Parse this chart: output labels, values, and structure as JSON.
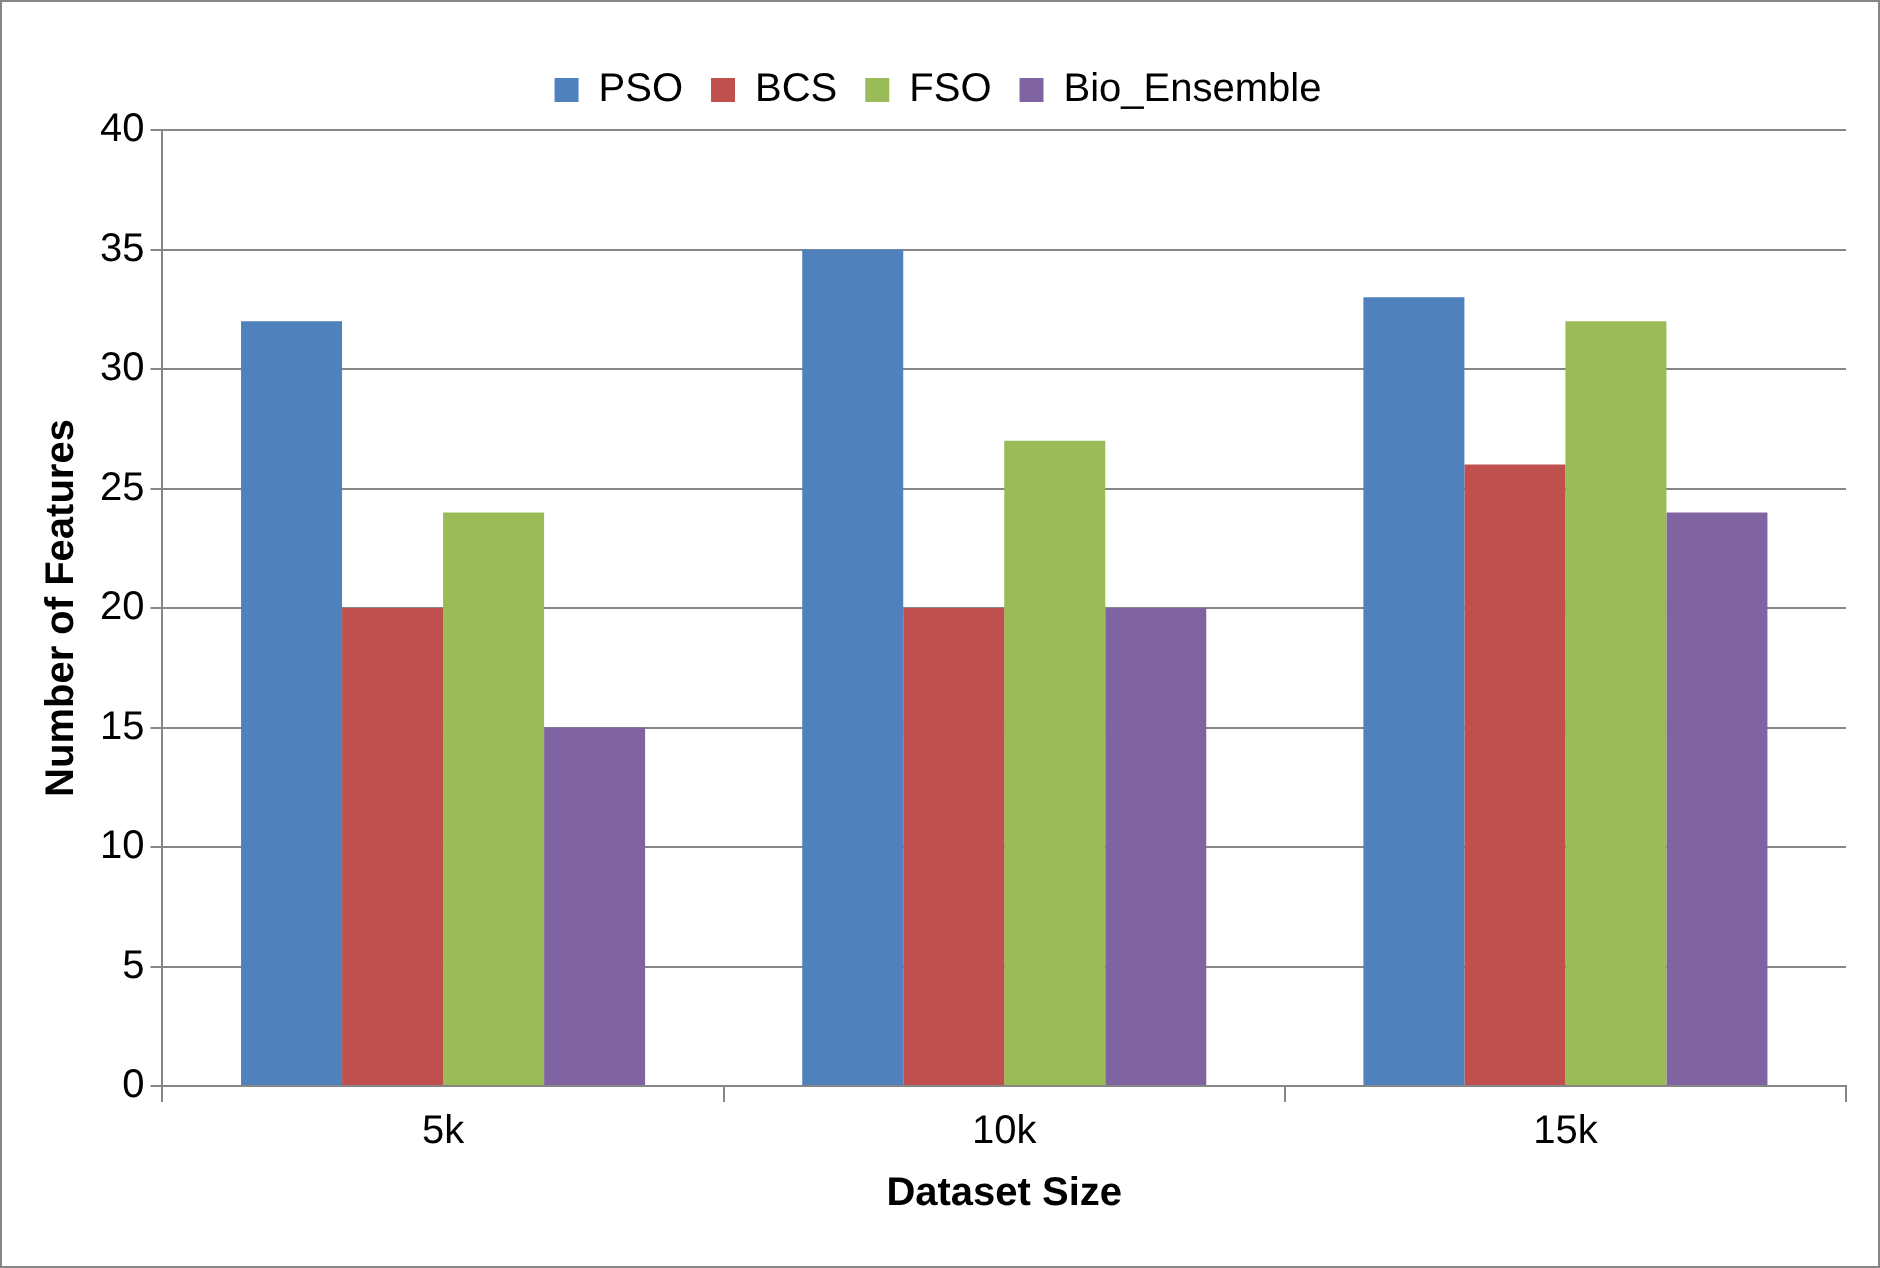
{
  "chart_data": {
    "type": "bar",
    "xlabel": "Dataset Size",
    "ylabel": "Number of Features",
    "categories": [
      "5k",
      "10k",
      "15k"
    ],
    "series": [
      {
        "name": "PSO",
        "color": "#4f81bd",
        "values": [
          32,
          35,
          33
        ]
      },
      {
        "name": "BCS",
        "color": "#c0504d",
        "values": [
          20,
          20,
          26
        ]
      },
      {
        "name": "FSO",
        "color": "#9bbb59",
        "values": [
          24,
          27,
          32
        ]
      },
      {
        "name": "Bio_Ensemble",
        "color": "#8064a2",
        "values": [
          15,
          20,
          24
        ]
      }
    ],
    "ylim": [
      0,
      40
    ],
    "yticks": [
      0,
      5,
      10,
      15,
      20,
      25,
      30,
      35,
      40
    ],
    "grid": "y",
    "legend": "top"
  }
}
